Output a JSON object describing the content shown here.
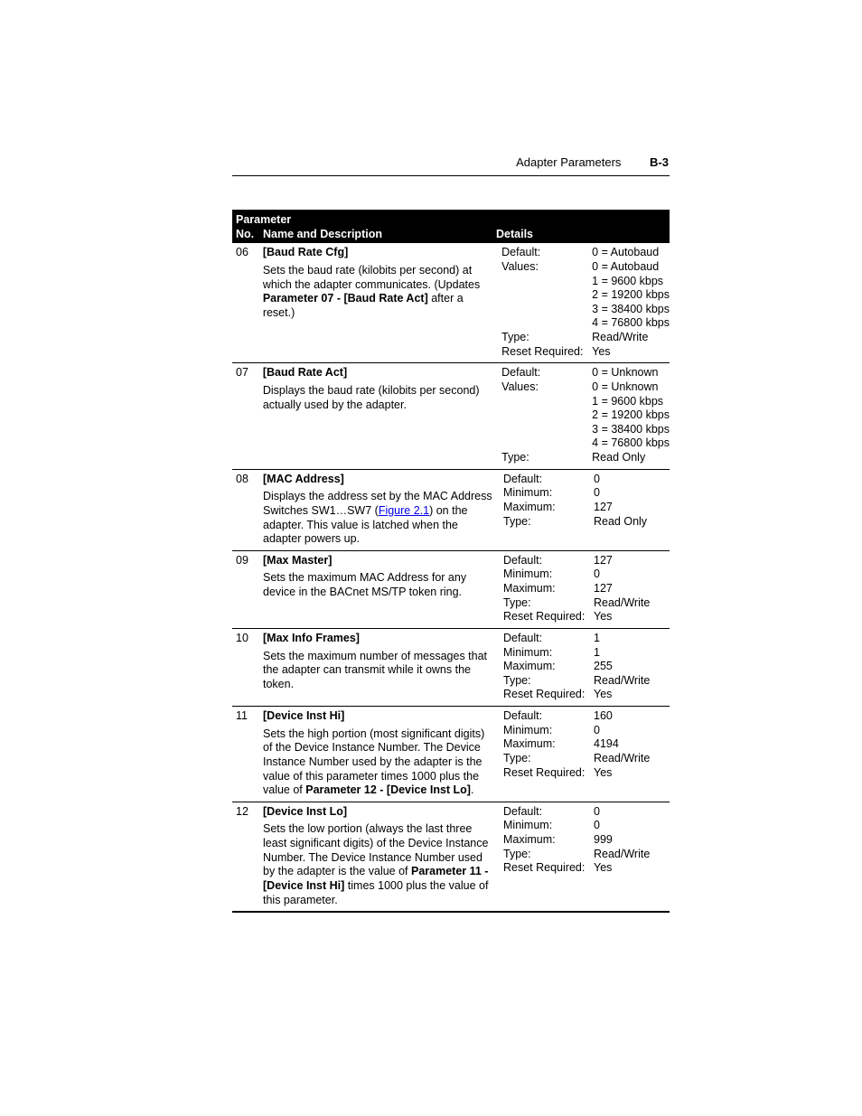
{
  "page_header": {
    "title": "Adapter Parameters",
    "page_number": "B-3"
  },
  "table": {
    "header": {
      "group": "Parameter",
      "col_no": "No.",
      "col_name": "Name and Description",
      "col_details": "Details"
    },
    "rows": [
      {
        "no": "06",
        "title": "[Baud Rate Cfg]",
        "desc_pre": "Sets the baud rate (kilobits per second) at which the adapter communicates. (Updates ",
        "desc_bold": "Parameter 07 - [Baud Rate Act]",
        "desc_post": " after a reset.)",
        "detail_labels": [
          "Default:",
          "Values:",
          "",
          "",
          "",
          "",
          "Type:",
          "Reset Required:"
        ],
        "detail_values": [
          "0 = Autobaud",
          "0 = Autobaud",
          "1 = 9600 kbps",
          "2 = 19200 kbps",
          "3 = 38400 kbps",
          "4 = 76800 kbps",
          "Read/Write",
          "Yes"
        ]
      },
      {
        "no": "07",
        "title": "[Baud Rate Act]",
        "desc_pre": "Displays the baud rate (kilobits per second) actually used by the adapter.",
        "desc_bold": "",
        "desc_post": "",
        "detail_labels": [
          "Default:",
          "Values:",
          "",
          "",
          "",
          "",
          "Type:"
        ],
        "detail_values": [
          "0 = Unknown",
          "0 = Unknown",
          "1 = 9600 kbps",
          "2 = 19200 kbps",
          "3 = 38400 kbps",
          "4 = 76800 kbps",
          "Read Only"
        ]
      },
      {
        "no": "08",
        "title": "[MAC Address]",
        "desc_pre": "Displays the address set by the MAC Address Switches SW1…SW7 (",
        "desc_link": "Figure 2.1",
        "desc_post": ") on the adapter. This value is latched when the adapter powers up.",
        "detail_labels": [
          "Default:",
          "Minimum:",
          "Maximum:",
          "Type:"
        ],
        "detail_values": [
          "0",
          "0",
          "127",
          "Read Only"
        ]
      },
      {
        "no": "09",
        "title": "[Max Master]",
        "desc_pre": "Sets the maximum MAC Address for any device in the BACnet MS/TP token ring.",
        "desc_bold": "",
        "desc_post": "",
        "detail_labels": [
          "Default:",
          "Minimum:",
          "Maximum:",
          "Type:",
          "Reset Required:"
        ],
        "detail_values": [
          "127",
          "0",
          "127",
          "Read/Write",
          "Yes"
        ]
      },
      {
        "no": "10",
        "title": "[Max Info Frames]",
        "desc_pre": "Sets the maximum number of messages that the adapter can transmit while it owns the token.",
        "desc_bold": "",
        "desc_post": "",
        "detail_labels": [
          "Default:",
          "Minimum:",
          "Maximum:",
          "Type:",
          "Reset Required:"
        ],
        "detail_values": [
          "1",
          "1",
          "255",
          "Read/Write",
          "Yes"
        ]
      },
      {
        "no": "11",
        "title": "[Device Inst Hi]",
        "desc_pre": "Sets the high portion (most significant digits) of the Device Instance Number. The Device Instance Number used by the adapter is the value of this parameter times 1000 plus the value of ",
        "desc_bold": "Parameter 12 - [Device Inst Lo]",
        "desc_post": ".",
        "detail_labels": [
          "Default:",
          "Minimum:",
          "Maximum:",
          "Type:",
          "Reset Required:"
        ],
        "detail_values": [
          "160",
          "0",
          "4194",
          "Read/Write",
          "Yes"
        ]
      },
      {
        "no": "12",
        "title": "[Device Inst Lo]",
        "desc_pre": "Sets the low portion (always the last three least significant digits) of the Device Instance Number. The Device Instance Number used by the adapter is the value of ",
        "desc_bold": "Parameter 11 - [Device Inst Hi]",
        "desc_post": " times 1000 plus the value of this parameter.",
        "detail_labels": [
          "Default:",
          "Minimum:",
          "Maximum:",
          "Type:",
          "Reset Required:"
        ],
        "detail_values": [
          "0",
          "0",
          "999",
          "Read/Write",
          "Yes"
        ]
      }
    ]
  }
}
